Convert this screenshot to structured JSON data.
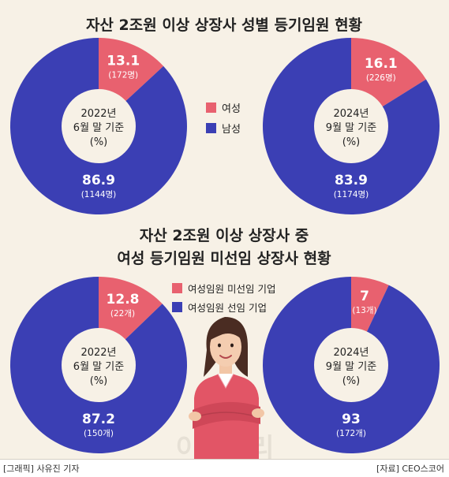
{
  "header": {
    "title1": "자산 2조원 이상 상장사 성별 등기임원 현황",
    "title2_line1": "자산 2조원 이상 상장사 중",
    "title2_line2": "여성 등기임원 미선임 상장사 현황"
  },
  "legend1": [
    {
      "label": "여성",
      "color": "#e8616f"
    },
    {
      "label": "남성",
      "color": "#3b3fb4"
    }
  ],
  "legend2": [
    {
      "label": "여성임원 미선임 기업",
      "color": "#e8616f"
    },
    {
      "label": "여성임원 선임 기업",
      "color": "#3b3fb4"
    }
  ],
  "watermark": "이데일리",
  "footer": {
    "credit": "[그래픽] 사유진 기자",
    "source": "[자료] CEO스코어"
  },
  "colors": {
    "pink": "#e8616f",
    "blue": "#3b3fb4",
    "background": "#f7f1e6",
    "center": "#f7f1e6"
  },
  "chart_data": [
    {
      "type": "pie",
      "center_line1": "2022년",
      "center_line2": "6월 말 기준",
      "center_line3": "(%)",
      "slices": [
        {
          "value": 13.1,
          "count": "(172명)",
          "color": "#e8616f"
        },
        {
          "value": 86.9,
          "count": "(1144명)",
          "color": "#3b3fb4"
        }
      ]
    },
    {
      "type": "pie",
      "center_line1": "2024년",
      "center_line2": "9월 말 기준",
      "center_line3": "(%)",
      "slices": [
        {
          "value": 16.1,
          "count": "(226명)",
          "color": "#e8616f"
        },
        {
          "value": 83.9,
          "count": "(1174명)",
          "color": "#3b3fb4"
        }
      ]
    },
    {
      "type": "pie",
      "center_line1": "2022년",
      "center_line2": "6월 말 기준",
      "center_line3": "(%)",
      "slices": [
        {
          "value": 12.8,
          "count": "(22개)",
          "color": "#e8616f"
        },
        {
          "value": 87.2,
          "count": "(150개)",
          "color": "#3b3fb4"
        }
      ]
    },
    {
      "type": "pie",
      "center_line1": "2024년",
      "center_line2": "9월 말 기준",
      "center_line3": "(%)",
      "slices": [
        {
          "value": 7,
          "count": "(13개)",
          "color": "#e8616f"
        },
        {
          "value": 93,
          "count": "(172개)",
          "color": "#3b3fb4"
        }
      ]
    }
  ]
}
